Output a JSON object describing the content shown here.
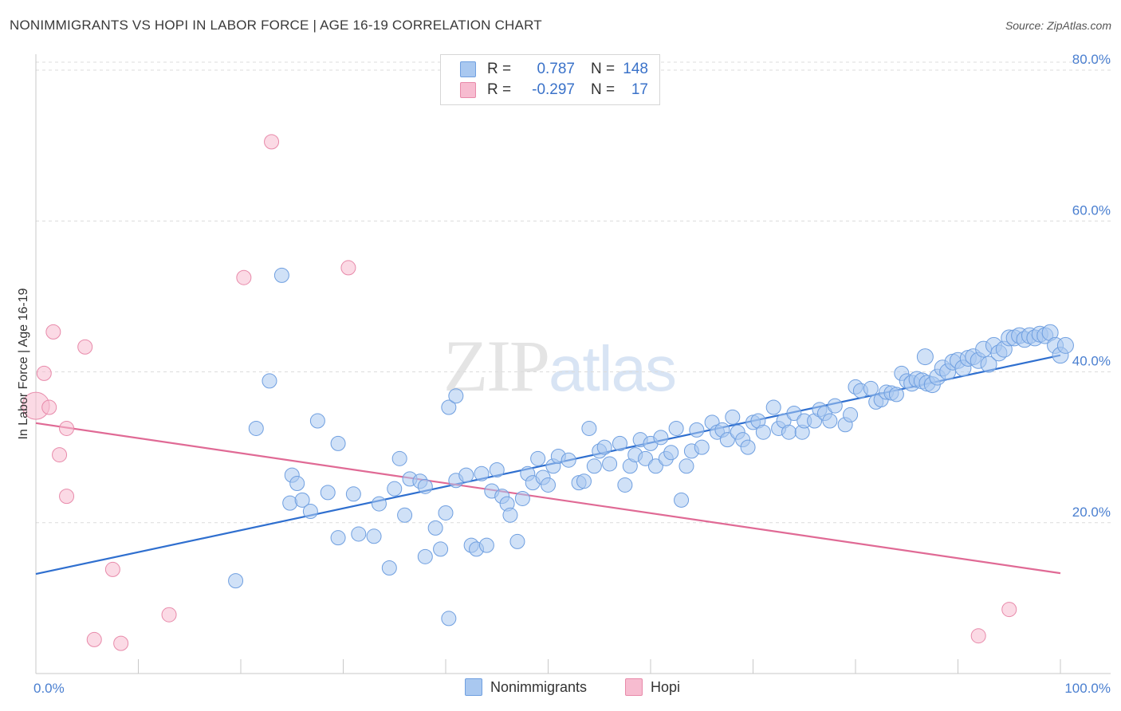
{
  "header": {
    "title": "NONIMMIGRANTS VS HOPI IN LABOR FORCE | AGE 16-19 CORRELATION CHART",
    "source": "Source: ZipAtlas.com"
  },
  "watermark": {
    "zip": "ZIP",
    "atlas": "atlas"
  },
  "legend": {
    "rows": [
      {
        "r_label": "R =",
        "r_value": "0.787",
        "n_label": "N =",
        "n_value": "148",
        "color": "#a9c8f0",
        "border": "#6f9fe0"
      },
      {
        "r_label": "R =",
        "r_value": "-0.297",
        "n_label": "N =",
        "n_value": "17",
        "color": "#f7bcd0",
        "border": "#e88aaa"
      }
    ]
  },
  "bottom_legend": [
    {
      "label": "Nonimmigrants",
      "color": "#a9c8f0",
      "border": "#6f9fe0"
    },
    {
      "label": "Hopi",
      "color": "#f7bcd0",
      "border": "#e88aaa"
    }
  ],
  "chart_data": {
    "type": "scatter",
    "title": "NONIMMIGRANTS VS HOPI IN LABOR FORCE | AGE 16-19 CORRELATION CHART",
    "xlabel": "",
    "ylabel": "In Labor Force | Age 16-19",
    "xlim": [
      0,
      100
    ],
    "ylim": [
      0,
      80
    ],
    "x_tick_labels": [
      "0.0%",
      "100.0%"
    ],
    "y_ticks": [
      20,
      40,
      60,
      80
    ],
    "y_tick_labels": [
      "20.0%",
      "40.0%",
      "60.0%",
      "80.0%"
    ],
    "grid": true,
    "legend_position": "top-center",
    "series": [
      {
        "name": "Nonimmigrants",
        "color": "#a9c8f0",
        "stroke": "#6f9fe0",
        "line_color": "#2f6fcf",
        "trend": {
          "x": [
            0,
            100
          ],
          "y": [
            13.2,
            42.2
          ]
        },
        "points": [
          [
            19.5,
            12.3
          ],
          [
            21.5,
            32.5
          ],
          [
            22.8,
            38.8
          ],
          [
            24,
            52.8
          ],
          [
            25,
            26.3
          ],
          [
            25.5,
            25.2
          ],
          [
            24.8,
            22.6
          ],
          [
            26,
            23
          ],
          [
            26.8,
            21.5
          ],
          [
            27.5,
            33.5
          ],
          [
            28.5,
            24
          ],
          [
            29.5,
            18
          ],
          [
            29.5,
            30.5
          ],
          [
            31,
            23.8
          ],
          [
            31.5,
            18.5
          ],
          [
            33,
            18.2
          ],
          [
            33.5,
            22.5
          ],
          [
            34.5,
            14
          ],
          [
            35,
            24.5
          ],
          [
            35.5,
            28.5
          ],
          [
            36,
            21
          ],
          [
            36.5,
            25.8
          ],
          [
            37.5,
            25.5
          ],
          [
            38,
            24.8
          ],
          [
            38,
            15.5
          ],
          [
            39,
            19.3
          ],
          [
            39.5,
            16.5
          ],
          [
            40,
            21.3
          ],
          [
            40.3,
            35.3
          ],
          [
            40.3,
            7.3
          ],
          [
            41,
            36.8
          ],
          [
            41,
            25.6
          ],
          [
            42,
            26.3
          ],
          [
            42.5,
            17
          ],
          [
            43,
            16.5
          ],
          [
            43.5,
            26.5
          ],
          [
            44,
            17
          ],
          [
            44.5,
            24.2
          ],
          [
            45,
            27
          ],
          [
            45.5,
            23.5
          ],
          [
            46,
            22.5
          ],
          [
            46.3,
            21
          ],
          [
            47,
            17.5
          ],
          [
            47.5,
            23.2
          ],
          [
            48,
            26.5
          ],
          [
            48.5,
            25.3
          ],
          [
            49,
            28.5
          ],
          [
            49.5,
            26
          ],
          [
            50,
            25
          ],
          [
            50.5,
            27.5
          ],
          [
            51,
            28.8
          ],
          [
            52,
            28.3
          ],
          [
            53,
            25.3
          ],
          [
            53.5,
            25.5
          ],
          [
            54,
            32.5
          ],
          [
            54.5,
            27.5
          ],
          [
            55,
            29.5
          ],
          [
            55.5,
            30
          ],
          [
            56,
            27.8
          ],
          [
            57,
            30.5
          ],
          [
            57.5,
            25
          ],
          [
            58,
            27.5
          ],
          [
            58.5,
            29
          ],
          [
            59,
            31
          ],
          [
            59.5,
            28.5
          ],
          [
            60,
            30.5
          ],
          [
            60.5,
            27.5
          ],
          [
            61,
            31.3
          ],
          [
            61.5,
            28.5
          ],
          [
            62,
            29.3
          ],
          [
            62.5,
            32.5
          ],
          [
            63,
            23
          ],
          [
            63.5,
            27.5
          ],
          [
            64,
            29.5
          ],
          [
            64.5,
            32.3
          ],
          [
            65,
            30
          ],
          [
            66,
            33.3
          ],
          [
            66.5,
            32
          ],
          [
            67,
            32.3
          ],
          [
            67.5,
            31
          ],
          [
            68,
            34
          ],
          [
            68.5,
            32
          ],
          [
            69,
            31
          ],
          [
            69.5,
            30
          ],
          [
            70,
            33.3
          ],
          [
            70.5,
            33.5
          ],
          [
            71,
            32
          ],
          [
            72,
            35.3
          ],
          [
            72.5,
            32.5
          ],
          [
            73,
            33.5
          ],
          [
            73.5,
            32
          ],
          [
            74,
            34.5
          ],
          [
            74.8,
            32
          ],
          [
            75,
            33.5
          ],
          [
            76,
            33.5
          ],
          [
            76.5,
            35
          ],
          [
            77,
            34.5
          ],
          [
            77.5,
            33.5
          ],
          [
            78,
            35.5
          ],
          [
            79,
            33
          ],
          [
            79.5,
            34.3
          ],
          [
            80,
            38
          ],
          [
            80.5,
            37.5
          ],
          [
            81.5,
            37.8
          ],
          [
            82,
            36
          ],
          [
            82.5,
            36.3
          ],
          [
            83,
            37.3
          ],
          [
            83.5,
            37.2
          ],
          [
            84,
            37
          ],
          [
            84.5,
            39.8
          ],
          [
            85,
            38.8
          ],
          [
            85.5,
            38.5
          ],
          [
            86,
            39
          ],
          [
            86.5,
            38.8
          ],
          [
            86.8,
            42
          ],
          [
            87,
            38.5
          ],
          [
            87.5,
            38.3
          ],
          [
            88,
            39.3
          ],
          [
            88.5,
            40.5
          ],
          [
            89,
            40
          ],
          [
            89.5,
            41.3
          ],
          [
            90,
            41.5
          ],
          [
            90.5,
            40.5
          ],
          [
            91,
            41.8
          ],
          [
            91.5,
            42
          ],
          [
            92,
            41.5
          ],
          [
            92.5,
            43
          ],
          [
            93,
            41
          ],
          [
            93.5,
            43.5
          ],
          [
            94,
            42.5
          ],
          [
            94.5,
            43
          ],
          [
            95,
            44.5
          ],
          [
            95.5,
            44.5
          ],
          [
            96,
            44.8
          ],
          [
            96.5,
            44.3
          ],
          [
            97,
            44.8
          ],
          [
            97.5,
            44.5
          ],
          [
            98,
            45
          ],
          [
            98.5,
            44.8
          ],
          [
            99,
            45.2
          ],
          [
            99.5,
            43.5
          ],
          [
            100,
            42.2
          ],
          [
            100.5,
            43.5
          ]
        ]
      },
      {
        "name": "Hopi",
        "color": "#f7bcd0",
        "stroke": "#e88aaa",
        "line_color": "#e06a95",
        "trend": {
          "x": [
            0,
            100
          ],
          "y": [
            33.2,
            13.3
          ]
        },
        "points": [
          [
            0,
            35.5
          ],
          [
            0.8,
            39.8
          ],
          [
            1.3,
            35.3
          ],
          [
            1.7,
            45.3
          ],
          [
            2.3,
            29
          ],
          [
            3,
            32.5
          ],
          [
            3,
            23.5
          ],
          [
            4.8,
            43.3
          ],
          [
            5.7,
            4.5
          ],
          [
            7.5,
            13.8
          ],
          [
            8.3,
            4
          ],
          [
            13,
            7.8
          ],
          [
            20.3,
            52.5
          ],
          [
            23,
            70.5
          ],
          [
            30.5,
            53.8
          ],
          [
            92,
            5
          ],
          [
            95,
            8.5
          ]
        ]
      }
    ]
  }
}
